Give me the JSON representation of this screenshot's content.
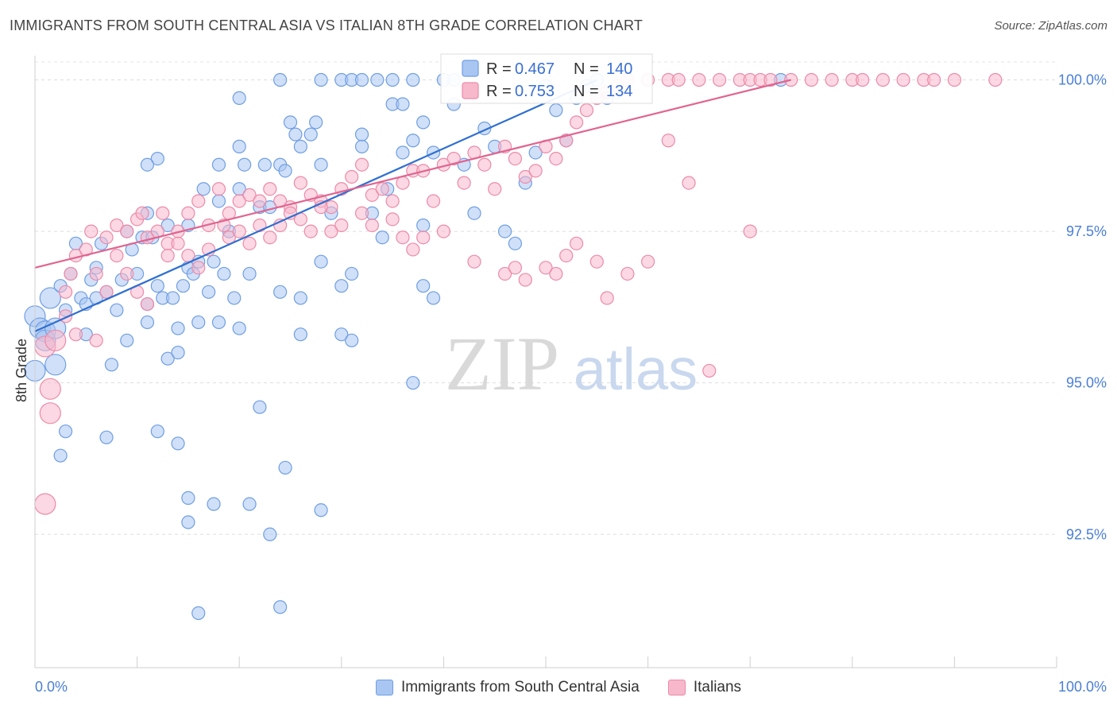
{
  "header": {
    "title": "IMMIGRANTS FROM SOUTH CENTRAL ASIA VS ITALIAN 8TH GRADE CORRELATION CHART",
    "source": "Source: ZipAtlas.com"
  },
  "watermark": {
    "zip": "ZIP",
    "atlas": "atlas"
  },
  "chart_data": {
    "type": "scatter",
    "title": "IMMIGRANTS FROM SOUTH CENTRAL ASIA VS ITALIAN 8TH GRADE CORRELATION CHART",
    "ylabel": "8th Grade",
    "xlabel": "",
    "xlim": [
      0,
      100
    ],
    "ylim": [
      90.3,
      100.4
    ],
    "x_tick_labels": [
      "0.0%",
      "100.0%"
    ],
    "y_ticks": [
      {
        "value": 100.0,
        "label": "100.0%"
      },
      {
        "value": 97.5,
        "label": "97.5%"
      },
      {
        "value": 95.0,
        "label": "95.0%"
      },
      {
        "value": 92.5,
        "label": "92.5%"
      }
    ],
    "grid": true,
    "legend_position": "top-center",
    "series": [
      {
        "name": "Immigrants from South Central Asia",
        "color": "#6f9ee3",
        "fill": "#a9c6f2",
        "line_color": "#2f6fd0",
        "R": "0.467",
        "N": "140",
        "trend": {
          "x0": 0,
          "y0": 95.85,
          "x1": 55,
          "y1": 100.0
        },
        "points": [
          [
            0,
            96.1
          ],
          [
            0,
            95.2
          ],
          [
            0.5,
            95.9
          ],
          [
            1,
            95.85
          ],
          [
            1,
            95.7
          ],
          [
            1.5,
            96.4
          ],
          [
            2,
            95.3
          ],
          [
            2,
            95.9
          ],
          [
            2.5,
            96.6
          ],
          [
            3,
            96.2
          ],
          [
            3.5,
            96.8
          ],
          [
            4,
            97.3
          ],
          [
            4.5,
            96.4
          ],
          [
            5,
            96.3
          ],
          [
            5,
            95.8
          ],
          [
            5.5,
            96.7
          ],
          [
            6,
            96.9
          ],
          [
            6,
            96.4
          ],
          [
            6.5,
            97.3
          ],
          [
            7,
            96.5
          ],
          [
            7.5,
            95.3
          ],
          [
            8,
            96.2
          ],
          [
            8.5,
            96.7
          ],
          [
            9,
            95.7
          ],
          [
            9,
            97.5
          ],
          [
            9.5,
            97.2
          ],
          [
            10,
            96.8
          ],
          [
            10.5,
            97.4
          ],
          [
            11,
            96.3
          ],
          [
            11,
            97.8
          ],
          [
            11.5,
            97.4
          ],
          [
            12,
            96.6
          ],
          [
            12.5,
            96.4
          ],
          [
            13,
            97.6
          ],
          [
            13.5,
            96.4
          ],
          [
            14,
            95.9
          ],
          [
            14.5,
            96.6
          ],
          [
            15,
            96.9
          ],
          [
            15,
            97.6
          ],
          [
            15.5,
            96.8
          ],
          [
            16,
            97.0
          ],
          [
            16.5,
            98.2
          ],
          [
            17,
            96.5
          ],
          [
            17.5,
            97.0
          ],
          [
            18,
            98.0
          ],
          [
            18.5,
            96.8
          ],
          [
            19,
            97.5
          ],
          [
            19.5,
            96.4
          ],
          [
            20,
            98.2
          ],
          [
            20.5,
            98.6
          ],
          [
            21,
            96.8
          ],
          [
            22,
            97.9
          ],
          [
            22.5,
            98.6
          ],
          [
            23,
            97.9
          ],
          [
            24,
            98.6
          ],
          [
            24.5,
            98.5
          ],
          [
            25,
            99.3
          ],
          [
            25.5,
            99.1
          ],
          [
            26,
            98.9
          ],
          [
            27,
            99.1
          ],
          [
            27.5,
            99.3
          ],
          [
            28,
            98.6
          ],
          [
            29,
            97.8
          ],
          [
            30,
            96.6
          ],
          [
            31,
            96.8
          ],
          [
            32,
            98.9
          ],
          [
            33,
            97.8
          ],
          [
            34,
            97.4
          ],
          [
            34.5,
            98.2
          ],
          [
            35,
            99.6
          ],
          [
            36,
            98.8
          ],
          [
            38,
            97.6
          ],
          [
            39,
            98.8
          ],
          [
            41,
            99.6
          ],
          [
            42,
            98.6
          ],
          [
            43,
            97.8
          ],
          [
            44,
            99.2
          ],
          [
            45,
            98.9
          ],
          [
            46,
            97.5
          ],
          [
            47,
            97.3
          ],
          [
            48,
            98.3
          ],
          [
            49,
            98.8
          ],
          [
            50,
            99.9
          ],
          [
            51,
            99.5
          ],
          [
            52,
            99.0
          ],
          [
            53,
            99.7
          ],
          [
            54,
            99.9
          ],
          [
            55,
            100.0
          ],
          [
            56,
            99.7
          ],
          [
            57,
            99.8
          ],
          [
            3,
            94.2
          ],
          [
            2.5,
            93.8
          ],
          [
            7,
            94.1
          ],
          [
            12,
            94.2
          ],
          [
            14,
            94.0
          ],
          [
            15,
            92.7
          ],
          [
            15,
            93.1
          ],
          [
            17.5,
            93.0
          ],
          [
            22,
            94.6
          ],
          [
            21,
            93.0
          ],
          [
            23,
            92.5
          ],
          [
            24,
            91.3
          ],
          [
            24.5,
            93.6
          ],
          [
            28,
            92.9
          ],
          [
            16,
            91.2
          ],
          [
            30,
            95.8
          ],
          [
            31,
            95.7
          ],
          [
            37,
            95.0
          ],
          [
            38,
            96.6
          ],
          [
            39,
            96.4
          ],
          [
            26,
            95.8
          ],
          [
            13,
            95.4
          ],
          [
            14,
            95.5
          ],
          [
            16,
            96.0
          ],
          [
            18,
            96.0
          ],
          [
            20,
            95.9
          ],
          [
            11,
            96.0
          ],
          [
            24,
            96.5
          ],
          [
            26,
            96.4
          ],
          [
            28,
            97.0
          ],
          [
            24,
            100
          ],
          [
            28,
            100
          ],
          [
            30,
            100
          ],
          [
            31,
            100
          ],
          [
            32,
            100
          ],
          [
            33.5,
            100
          ],
          [
            35,
            100
          ],
          [
            37,
            100
          ],
          [
            41,
            100
          ],
          [
            73,
            100
          ],
          [
            12,
            98.7
          ],
          [
            11,
            98.6
          ],
          [
            18,
            98.6
          ],
          [
            20,
            98.9
          ],
          [
            32,
            99.1
          ],
          [
            36,
            99.6
          ],
          [
            37,
            99.0
          ],
          [
            38,
            99.3
          ],
          [
            40,
            100
          ],
          [
            20,
            99.7
          ]
        ]
      },
      {
        "name": "Italians",
        "color": "#ec8aa8",
        "fill": "#f7b8cc",
        "line_color": "#e06590",
        "R": "0.753",
        "N": "134",
        "trend": {
          "x0": 0,
          "y0": 96.9,
          "x1": 74,
          "y1": 100.0
        },
        "points": [
          [
            1,
            95.6
          ],
          [
            1.5,
            94.9
          ],
          [
            1.5,
            94.5
          ],
          [
            1,
            93.0
          ],
          [
            2,
            95.7
          ],
          [
            3,
            96.5
          ],
          [
            3.5,
            96.8
          ],
          [
            4,
            97.1
          ],
          [
            5,
            97.2
          ],
          [
            5.5,
            97.5
          ],
          [
            6,
            96.8
          ],
          [
            7,
            97.4
          ],
          [
            8,
            97.6
          ],
          [
            9,
            97.5
          ],
          [
            10,
            97.7
          ],
          [
            10.5,
            97.8
          ],
          [
            11,
            97.4
          ],
          [
            12,
            97.5
          ],
          [
            12.5,
            97.8
          ],
          [
            13,
            97.3
          ],
          [
            14,
            97.5
          ],
          [
            15,
            97.8
          ],
          [
            16,
            98.0
          ],
          [
            17,
            97.6
          ],
          [
            18,
            98.2
          ],
          [
            18.5,
            97.6
          ],
          [
            19,
            97.8
          ],
          [
            20,
            98.0
          ],
          [
            21,
            98.1
          ],
          [
            22,
            98.0
          ],
          [
            23,
            98.2
          ],
          [
            24,
            98.0
          ],
          [
            25,
            97.9
          ],
          [
            26,
            98.3
          ],
          [
            27,
            98.1
          ],
          [
            28,
            98.0
          ],
          [
            29,
            97.9
          ],
          [
            30,
            98.2
          ],
          [
            31,
            98.4
          ],
          [
            32,
            98.6
          ],
          [
            33,
            98.1
          ],
          [
            34,
            98.2
          ],
          [
            35,
            98.0
          ],
          [
            36,
            98.3
          ],
          [
            37,
            98.5
          ],
          [
            38,
            98.5
          ],
          [
            39,
            98.0
          ],
          [
            40,
            98.6
          ],
          [
            41,
            98.7
          ],
          [
            42,
            98.3
          ],
          [
            43,
            98.8
          ],
          [
            44,
            98.6
          ],
          [
            45,
            98.2
          ],
          [
            46,
            98.9
          ],
          [
            47,
            98.7
          ],
          [
            48,
            98.4
          ],
          [
            49,
            98.5
          ],
          [
            50,
            98.9
          ],
          [
            51,
            98.7
          ],
          [
            52,
            99.0
          ],
          [
            53,
            99.3
          ],
          [
            54,
            99.5
          ],
          [
            55,
            99.7
          ],
          [
            56,
            99.8
          ],
          [
            57,
            99.9
          ],
          [
            58,
            100
          ],
          [
            60,
            100
          ],
          [
            62,
            100
          ],
          [
            63,
            100
          ],
          [
            65,
            100
          ],
          [
            67,
            100
          ],
          [
            69,
            100
          ],
          [
            70,
            100
          ],
          [
            71,
            100
          ],
          [
            72,
            100
          ],
          [
            74,
            100
          ],
          [
            76,
            100
          ],
          [
            78,
            100
          ],
          [
            80,
            100
          ],
          [
            81,
            100
          ],
          [
            83,
            100
          ],
          [
            85,
            100
          ],
          [
            87,
            100
          ],
          [
            88,
            100
          ],
          [
            90,
            100
          ],
          [
            94,
            100
          ],
          [
            3,
            96.1
          ],
          [
            4,
            95.8
          ],
          [
            6,
            95.7
          ],
          [
            7,
            96.5
          ],
          [
            8,
            97.1
          ],
          [
            9,
            96.8
          ],
          [
            10,
            96.5
          ],
          [
            11,
            96.3
          ],
          [
            13,
            97.1
          ],
          [
            14,
            97.3
          ],
          [
            15,
            97.1
          ],
          [
            16,
            96.9
          ],
          [
            17,
            97.2
          ],
          [
            19,
            97.4
          ],
          [
            20,
            97.5
          ],
          [
            21,
            97.3
          ],
          [
            22,
            97.6
          ],
          [
            23,
            97.4
          ],
          [
            24,
            97.6
          ],
          [
            25,
            97.8
          ],
          [
            26,
            97.7
          ],
          [
            27,
            97.5
          ],
          [
            28,
            97.9
          ],
          [
            29,
            97.5
          ],
          [
            30,
            97.6
          ],
          [
            32,
            97.8
          ],
          [
            33,
            97.6
          ],
          [
            35,
            97.7
          ],
          [
            36,
            97.4
          ],
          [
            37,
            97.2
          ],
          [
            38,
            97.4
          ],
          [
            40,
            97.5
          ],
          [
            43,
            97.0
          ],
          [
            46,
            96.8
          ],
          [
            47,
            96.9
          ],
          [
            48,
            96.7
          ],
          [
            50,
            96.9
          ],
          [
            51,
            96.8
          ],
          [
            52,
            97.1
          ],
          [
            53,
            97.3
          ],
          [
            55,
            97.0
          ],
          [
            56,
            96.4
          ],
          [
            58,
            96.8
          ],
          [
            60,
            97.0
          ],
          [
            62,
            99.0
          ],
          [
            64,
            98.3
          ],
          [
            66,
            95.2
          ],
          [
            70,
            97.5
          ]
        ]
      }
    ]
  }
}
